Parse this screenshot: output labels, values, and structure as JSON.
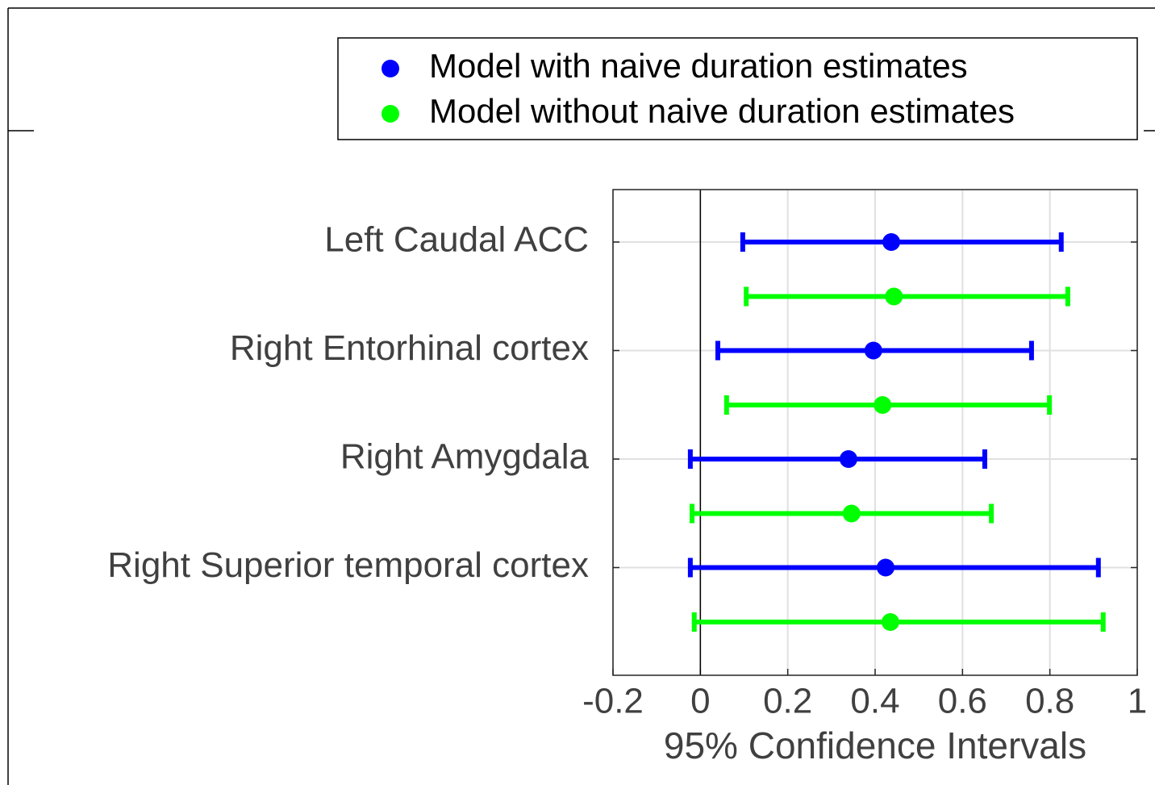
{
  "chart_data": {
    "type": "errorbar",
    "categories": [
      "Left Caudal ACC",
      "Right Entorhinal cortex",
      "Right Amygdala",
      "Right Superior temporal cortex"
    ],
    "series": [
      {
        "name": "Model with naive duration estimates",
        "color": "#0000ff",
        "values": [
          0.437,
          0.396,
          0.339,
          0.424
        ],
        "lower": [
          0.097,
          0.04,
          -0.023,
          -0.023
        ],
        "upper": [
          0.826,
          0.758,
          0.651,
          0.911
        ]
      },
      {
        "name": "Model without naive duration estimates",
        "color": "#00ff00",
        "values": [
          0.443,
          0.417,
          0.346,
          0.435
        ],
        "lower": [
          0.105,
          0.06,
          -0.019,
          -0.014
        ],
        "upper": [
          0.841,
          0.799,
          0.666,
          0.922
        ]
      }
    ],
    "x_label": "95% Confidence Intervals",
    "xlim": [
      -0.2,
      1
    ],
    "xticks": [
      -0.2,
      0,
      0.2,
      0.4,
      0.6,
      0.8,
      1
    ],
    "grid": true,
    "legend": "top"
  }
}
